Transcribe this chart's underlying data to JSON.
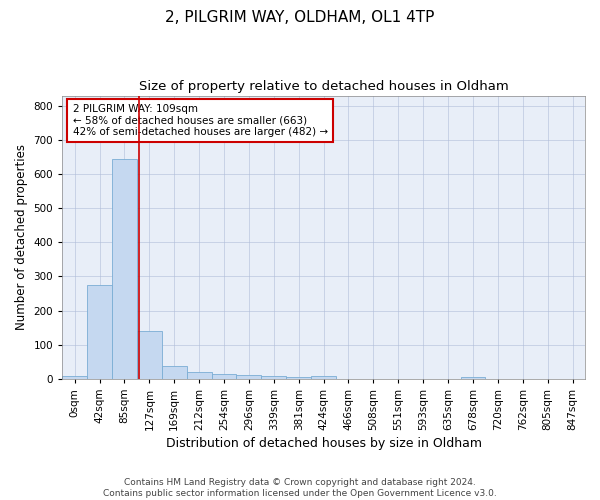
{
  "title1": "2, PILGRIM WAY, OLDHAM, OL1 4TP",
  "title2": "Size of property relative to detached houses in Oldham",
  "xlabel": "Distribution of detached houses by size in Oldham",
  "ylabel": "Number of detached properties",
  "bin_labels": [
    "0sqm",
    "42sqm",
    "85sqm",
    "127sqm",
    "169sqm",
    "212sqm",
    "254sqm",
    "296sqm",
    "339sqm",
    "381sqm",
    "424sqm",
    "466sqm",
    "508sqm",
    "551sqm",
    "593sqm",
    "635sqm",
    "678sqm",
    "720sqm",
    "762sqm",
    "805sqm",
    "847sqm"
  ],
  "bar_heights": [
    8,
    275,
    645,
    140,
    38,
    20,
    13,
    11,
    8,
    5,
    8,
    0,
    0,
    0,
    0,
    0,
    5,
    0,
    0,
    0,
    0
  ],
  "bar_color": "#c5d8f0",
  "bar_edge_color": "#7aadd4",
  "background_color": "#e8eef8",
  "grid_color": "#b0bcd8",
  "vline_x": 2.6,
  "vline_color": "#cc0000",
  "annotation_text": "2 PILGRIM WAY: 109sqm\n← 58% of detached houses are smaller (663)\n42% of semi-detached houses are larger (482) →",
  "annotation_box_color": "white",
  "annotation_box_edge": "#cc0000",
  "footer": "Contains HM Land Registry data © Crown copyright and database right 2024.\nContains public sector information licensed under the Open Government Licence v3.0.",
  "ylim": [
    0,
    830
  ],
  "yticks": [
    0,
    100,
    200,
    300,
    400,
    500,
    600,
    700,
    800
  ],
  "title1_fontsize": 11,
  "title2_fontsize": 9.5,
  "xlabel_fontsize": 9,
  "ylabel_fontsize": 8.5,
  "tick_fontsize": 7.5,
  "footer_fontsize": 6.5,
  "annot_fontsize": 7.5
}
